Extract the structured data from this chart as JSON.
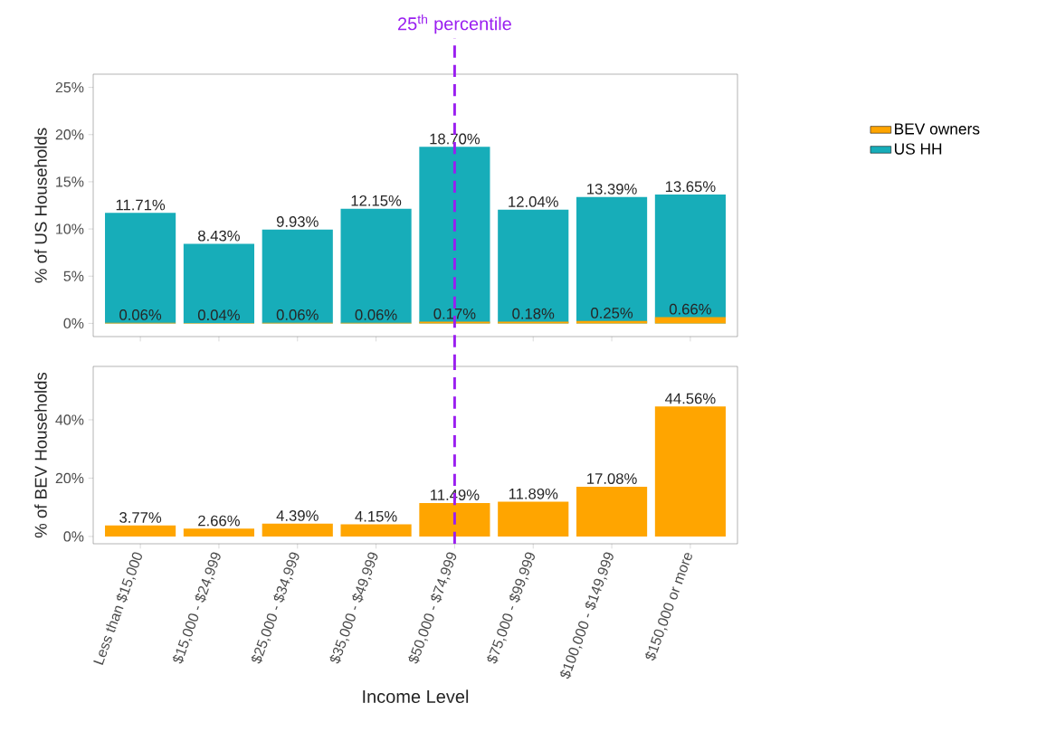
{
  "chart_data": [
    {
      "type": "bar",
      "ylabel": "% of US Households",
      "categories": [
        "Less than $15,000",
        "$15,000 - $24,999",
        "$25,000 - $34,999",
        "$35,000 - $49,999",
        "$50,000 - $74,999",
        "$75,000 - $99,999",
        "$100,000 - $149,999",
        "$150,000 or more"
      ],
      "series": [
        {
          "name": "BEV owners",
          "color": "#ffa500",
          "values": [
            0.06,
            0.04,
            0.06,
            0.06,
            0.17,
            0.18,
            0.25,
            0.66
          ],
          "value_labels": [
            "0.06%",
            "0.04%",
            "0.06%",
            "0.06%",
            "0.17%",
            "0.18%",
            "0.25%",
            "0.66%"
          ]
        },
        {
          "name": "US HH",
          "color": "#17adb9",
          "values": [
            11.71,
            8.43,
            9.93,
            12.15,
            18.7,
            12.04,
            13.39,
            13.65
          ],
          "value_labels": [
            "11.71%",
            "8.43%",
            "9.93%",
            "12.15%",
            "18.70%",
            "12.04%",
            "13.39%",
            "13.65%"
          ]
        }
      ],
      "ylim": [
        -1.4,
        26.4
      ],
      "yticks": [
        {
          "value": 0,
          "label": "0%"
        },
        {
          "value": 5,
          "label": "5%"
        },
        {
          "value": 10,
          "label": "10%"
        },
        {
          "value": 15,
          "label": "15%"
        },
        {
          "value": 20,
          "label": "20%"
        },
        {
          "value": 25,
          "label": "25%"
        }
      ],
      "tick_labels": "y",
      "legend": "right",
      "ref_lines": [
        {
          "axis": "x",
          "value": "$50,000 - $74,999",
          "label": "25$^{th}$ percentile",
          "color": "#9a1ff0",
          "line_style": "dashed"
        }
      ]
    },
    {
      "type": "bar",
      "ylabel": "% of BEV Households",
      "xlabel": "Income Level",
      "categories": [
        "Less than $15,000",
        "$15,000 - $24,999",
        "$25,000 - $34,999",
        "$35,000 - $49,999",
        "$50,000 - $74,999",
        "$75,000 - $99,999",
        "$100,000 - $149,999",
        "$150,000 or more"
      ],
      "series": [
        {
          "color": "#ffa500",
          "values": [
            3.77,
            2.66,
            4.39,
            4.15,
            11.49,
            11.89,
            17.08,
            44.56
          ],
          "value_labels": [
            "3.77%",
            "2.66%",
            "4.39%",
            "4.15%",
            "11.49%",
            "11.89%",
            "17.08%",
            "44.56%"
          ]
        }
      ],
      "ylim": [
        -2.5,
        58.3
      ],
      "yticks": [
        {
          "value": 0,
          "label": "0%"
        },
        {
          "value": 20,
          "label": "20%"
        },
        {
          "value": 40,
          "label": "40%"
        }
      ],
      "ref_lines": [
        {
          "axis": "x",
          "value": "$50,000 - $74,999",
          "color": "#9a1ff0",
          "line_style": "dashed"
        }
      ]
    }
  ]
}
